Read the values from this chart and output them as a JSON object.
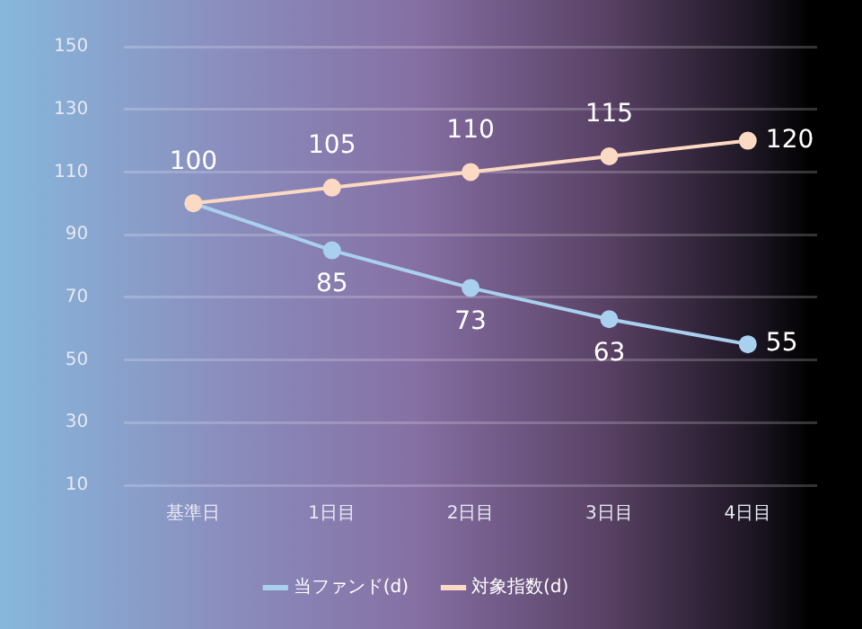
{
  "chart_data": {
    "type": "line",
    "categories": [
      "基準日",
      "1日目",
      "2日目",
      "3日目",
      "4日目"
    ],
    "series": [
      {
        "name": "当ファンド(d)",
        "color": "#a9d0ef",
        "values": [
          100,
          85,
          73,
          63,
          55
        ],
        "value_labels": [
          null,
          "85",
          "73",
          "63",
          "55"
        ]
      },
      {
        "name": "対象指数(d)",
        "color": "#fcd9c2",
        "values": [
          100,
          105,
          110,
          115,
          120
        ],
        "value_labels": [
          "100",
          "105",
          "110",
          "115",
          "120"
        ]
      }
    ],
    "ylim": [
      10,
      150
    ],
    "yticks": [
      10,
      30,
      50,
      70,
      90,
      110,
      130,
      150
    ],
    "grid": "y",
    "legend": "bottom",
    "marker": "circle",
    "line_style": "solid"
  }
}
